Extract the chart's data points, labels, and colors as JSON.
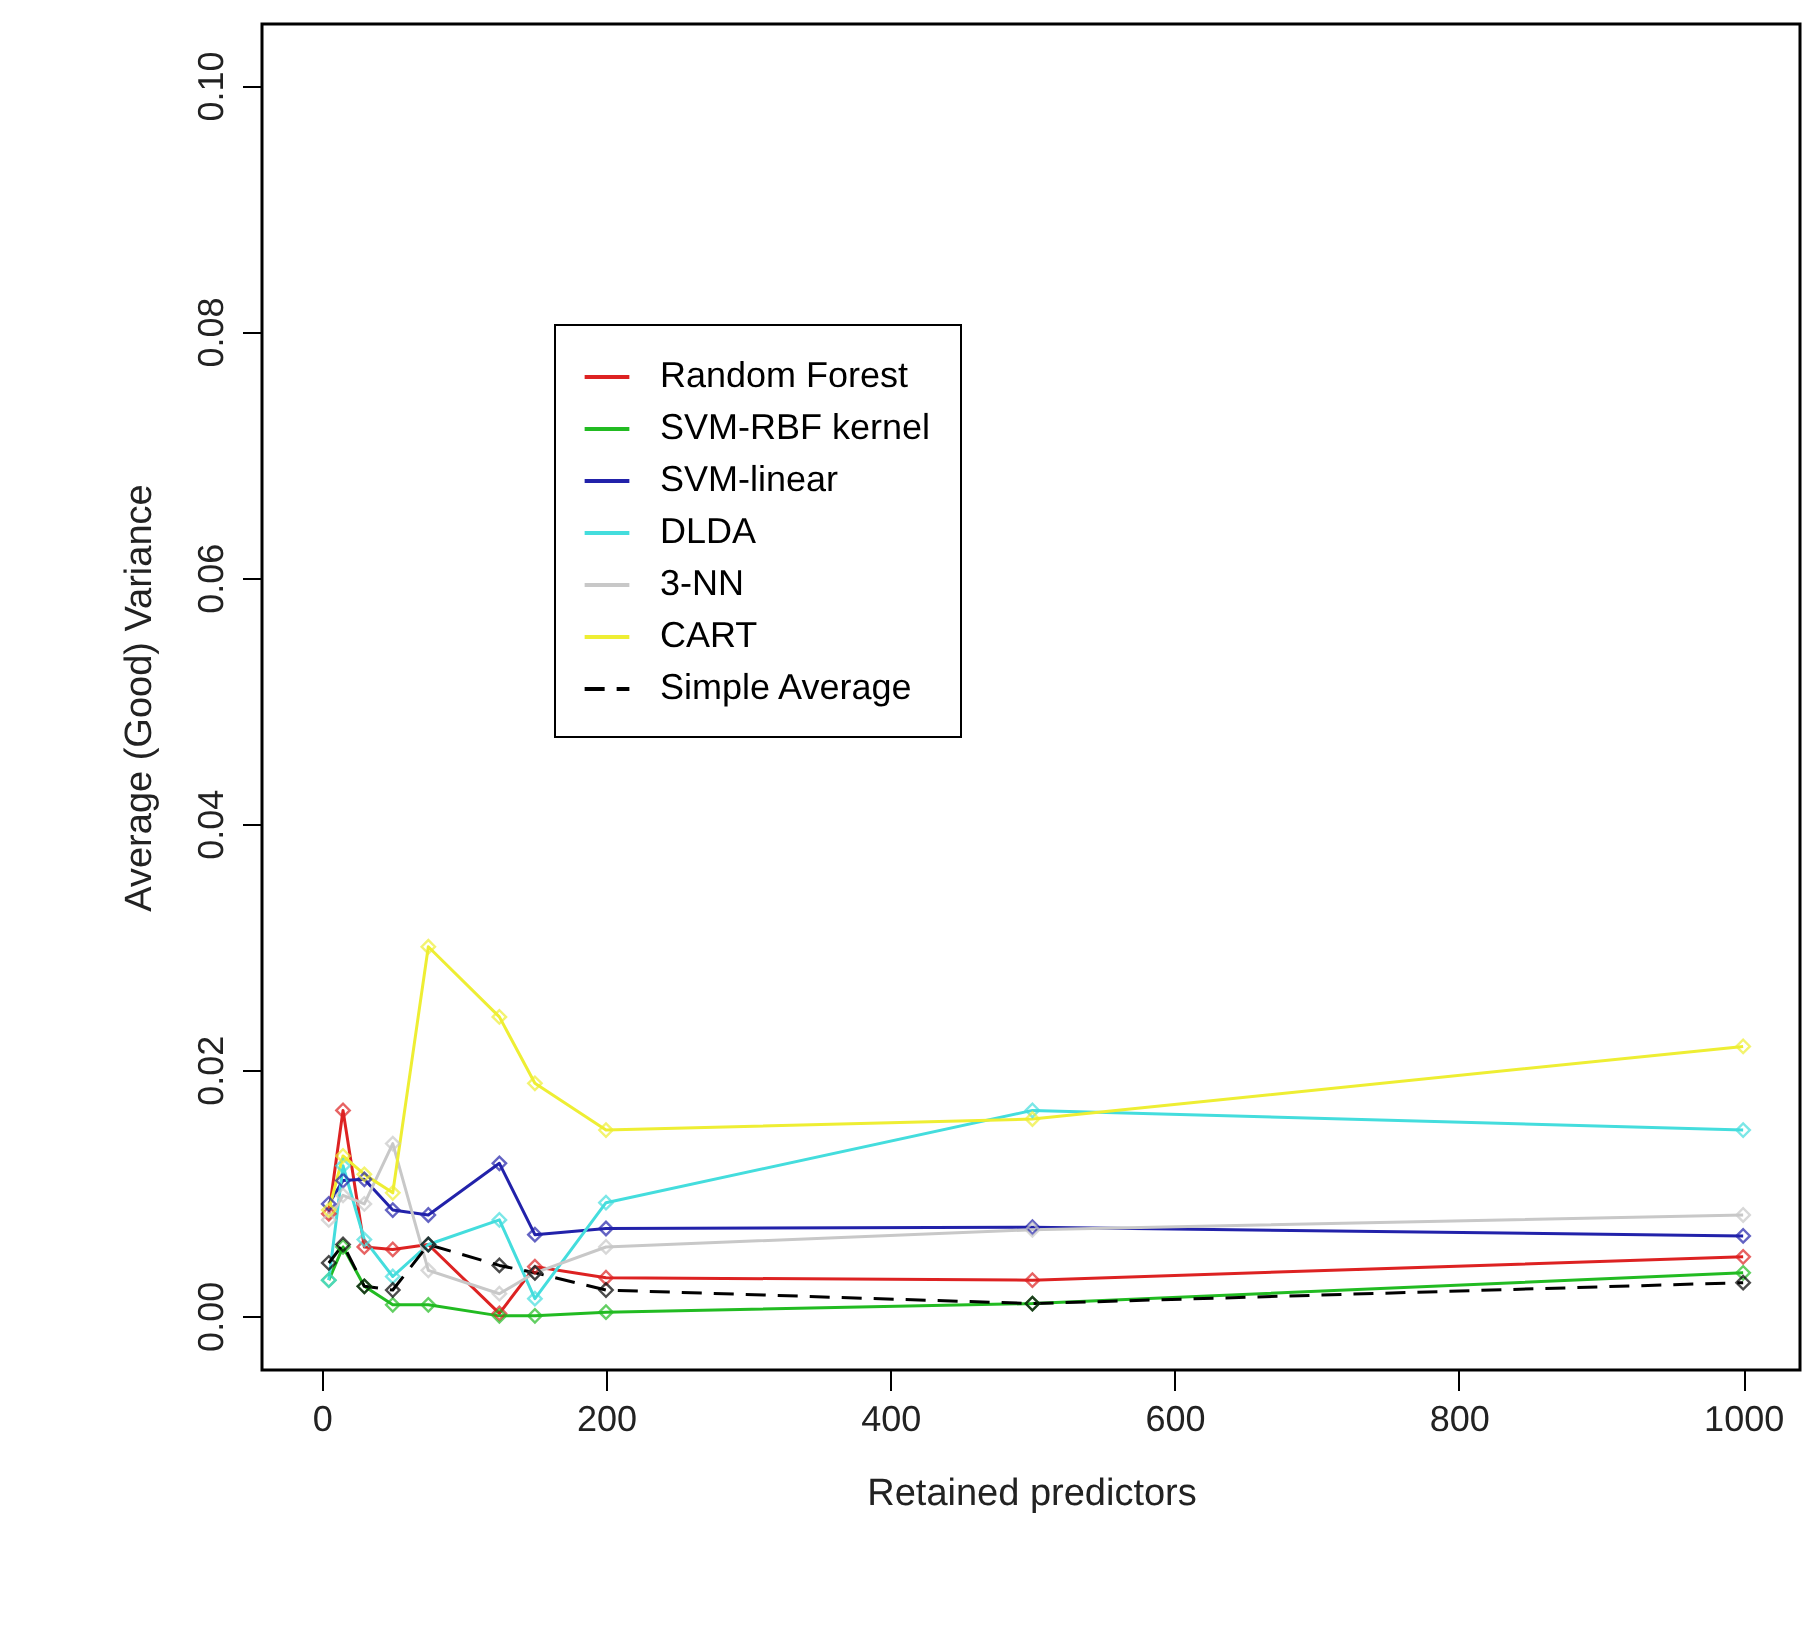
{
  "chart_data": {
    "type": "line",
    "xlabel": "Retained predictors",
    "ylabel": "Average (Good) Variance",
    "x": [
      5,
      15,
      30,
      50,
      75,
      125,
      150,
      200,
      500,
      1000
    ],
    "xlim": [
      -42,
      1040
    ],
    "ylim": [
      -0.0044,
      0.105
    ],
    "xticks": [
      0,
      200,
      400,
      600,
      800,
      1000
    ],
    "yticks": [
      {
        "value": 0,
        "label": "0.00"
      },
      0.02,
      0.04,
      0.06,
      0.08,
      {
        "value": 0.1,
        "label": "0.10"
      }
    ],
    "grid": false,
    "legend": "top",
    "marker": "diamond",
    "series": [
      {
        "name": "Random Forest",
        "color": "#dd2222",
        "line_style": "solid",
        "values": [
          0.0083,
          0.0167,
          0.0056,
          0.0054,
          0.0058,
          0.0002,
          0.004,
          0.0031,
          0.0029,
          0.0048
        ]
      },
      {
        "name": "SVM-RBF kernel",
        "color": "#22bb22",
        "line_style": "solid",
        "values": [
          0.0029,
          0.0056,
          0.0024,
          0.0009,
          0.0009,
          0.0,
          0.0,
          0.0003,
          0.001,
          0.0035
        ]
      },
      {
        "name": "SVM-linear",
        "color": "#2222aa",
        "line_style": "solid",
        "values": [
          0.0091,
          0.011,
          0.0111,
          0.0086,
          0.0082,
          0.0124,
          0.0066,
          0.0071,
          0.0072,
          0.0065
        ]
      },
      {
        "name": "DLDA",
        "color": "#44dddd",
        "line_style": "solid",
        "values": [
          0.0029,
          0.0122,
          0.0062,
          0.0032,
          0.0058,
          0.0078,
          0.0014,
          0.0092,
          0.0167,
          0.0151
        ]
      },
      {
        "name": "3-NN",
        "color": "#c8c8c8",
        "line_style": "solid",
        "values": [
          0.0078,
          0.0098,
          0.0091,
          0.014,
          0.0037,
          0.0018,
          0.0035,
          0.0056,
          0.007,
          0.0082
        ]
      },
      {
        "name": "CART",
        "color": "#eeee33",
        "line_style": "solid",
        "values": [
          0.0086,
          0.013,
          0.0115,
          0.01,
          0.03,
          0.0243,
          0.0189,
          0.0151,
          0.016,
          0.0219
        ]
      },
      {
        "name": "Simple Average",
        "color": "#000000",
        "line_style": "dashed",
        "values": [
          0.0043,
          0.0058,
          0.0024,
          0.0021,
          0.0058,
          0.0041,
          0.0035,
          0.0021,
          0.001,
          0.0027
        ]
      }
    ]
  }
}
